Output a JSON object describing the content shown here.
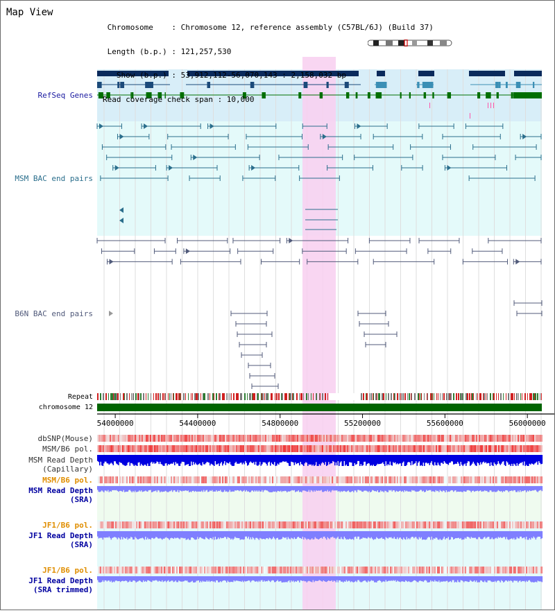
{
  "title": "Map View",
  "header": {
    "lines": [
      " Chromosome    : Chromosome 12, reference assembly (C57BL/6J) (Build 37)",
      " Length (b.p.) : 121,257,530",
      "   Show (b.p.) : 53,912,112-56,070,143 : 2,158,032 bp",
      "Read coverage check span : 10,000"
    ]
  },
  "colors": {
    "refseq": "#2020a0",
    "msm_bac": "#2a6e8c",
    "b6n_bac": "#505a7a",
    "highlight": "#f8d0f0",
    "chromosome": "#006400",
    "snp": "#e02020",
    "depth_blue": "#0000e0",
    "depth_light": "#7f7fff",
    "orange": "#e08e00"
  },
  "tracks": {
    "refseq_label": "RefSeq Genes",
    "msm_bac_label": "MSM BAC end pairs",
    "b6n_bac_label": "B6N BAC end pairs",
    "repeat_label": "Repeat",
    "chromosome_label": "chromosome 12",
    "dbsnp_label": "dbSNP(Mouse)",
    "msm_b6_pol_label": "MSM/B6 pol.",
    "msm_depth_cap_label_1": "MSM Read Depth",
    "msm_depth_cap_label_2": "(Capillary)",
    "msm_b6_pol2_label": "MSM/B6 pol.",
    "msm_depth_sra_label_1": "MSM Read Depth",
    "msm_depth_sra_label_2": "(SRA)",
    "jf1_pol_label": "JF1/B6 pol.",
    "jf1_depth_label_1": "JF1 Read Depth",
    "jf1_depth_label_2": "(SRA)",
    "jf1_pol2_label": "JF1/B6 pol.",
    "jf1_trim_label_1": "JF1 Read Depth",
    "jf1_trim_label_2": "(SRA trimmed)"
  },
  "axis": {
    "ticks": [
      "54000000",
      "54400000",
      "54800000",
      "55200000",
      "55600000",
      "56000000"
    ],
    "tick_positions": [
      54000000,
      54400000,
      54800000,
      55200000,
      55600000,
      56000000
    ],
    "range": [
      53912112,
      56070143
    ]
  }
}
